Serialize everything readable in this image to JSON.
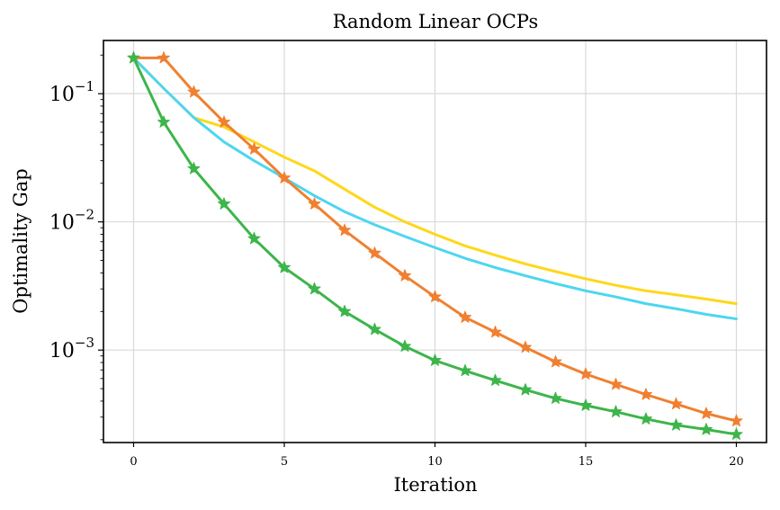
{
  "chart_data": {
    "type": "line",
    "title": "Random Linear OCPs",
    "xlabel": "Iteration",
    "ylabel": "Optimality Gap",
    "yscale": "log",
    "xlim": [
      -1,
      21
    ],
    "ylim": [
      0.00019,
      0.26
    ],
    "xticks": [
      0,
      5,
      10,
      15,
      20
    ],
    "yticks": [
      {
        "value": 0.1,
        "base": "10",
        "exp": "−1"
      },
      {
        "value": 0.01,
        "base": "10",
        "exp": "−2"
      },
      {
        "value": 0.001,
        "base": "10",
        "exp": "−3"
      }
    ],
    "grid": true,
    "legend": "none",
    "x": [
      0,
      1,
      2,
      3,
      4,
      5,
      6,
      7,
      8,
      9,
      10,
      11,
      12,
      13,
      14,
      15,
      16,
      17,
      18,
      19,
      20
    ],
    "series": [
      {
        "color": "#FFD719",
        "marker": "none",
        "values": [
          0.19,
          0.11,
          0.065,
          0.055,
          0.042,
          0.032,
          0.025,
          0.018,
          0.013,
          0.01,
          0.008,
          0.0065,
          0.0055,
          0.0047,
          0.0041,
          0.0036,
          0.0032,
          0.0029,
          0.0027,
          0.0025,
          0.0023
        ]
      },
      {
        "color": "#4DD6F0",
        "marker": "none",
        "values": [
          0.19,
          0.11,
          0.065,
          0.042,
          0.03,
          0.022,
          0.016,
          0.012,
          0.0095,
          0.0077,
          0.0063,
          0.0052,
          0.0044,
          0.0038,
          0.0033,
          0.0029,
          0.0026,
          0.0023,
          0.0021,
          0.0019,
          0.00175
        ]
      },
      {
        "color": "#F08030",
        "marker": "star",
        "values": [
          0.19,
          0.19,
          0.103,
          0.06,
          0.037,
          0.022,
          0.0138,
          0.0086,
          0.0057,
          0.0038,
          0.0026,
          0.0018,
          0.00138,
          0.00105,
          0.00081,
          0.00065,
          0.00054,
          0.00045,
          0.00038,
          0.00032,
          0.00028
        ]
      },
      {
        "color": "#3DB54A",
        "marker": "star",
        "values": [
          0.19,
          0.06,
          0.026,
          0.0138,
          0.0074,
          0.0044,
          0.003,
          0.002,
          0.00145,
          0.00107,
          0.00083,
          0.00069,
          0.00058,
          0.00049,
          0.00042,
          0.00037,
          0.00033,
          0.00029,
          0.00026,
          0.00024,
          0.00022
        ]
      }
    ]
  }
}
